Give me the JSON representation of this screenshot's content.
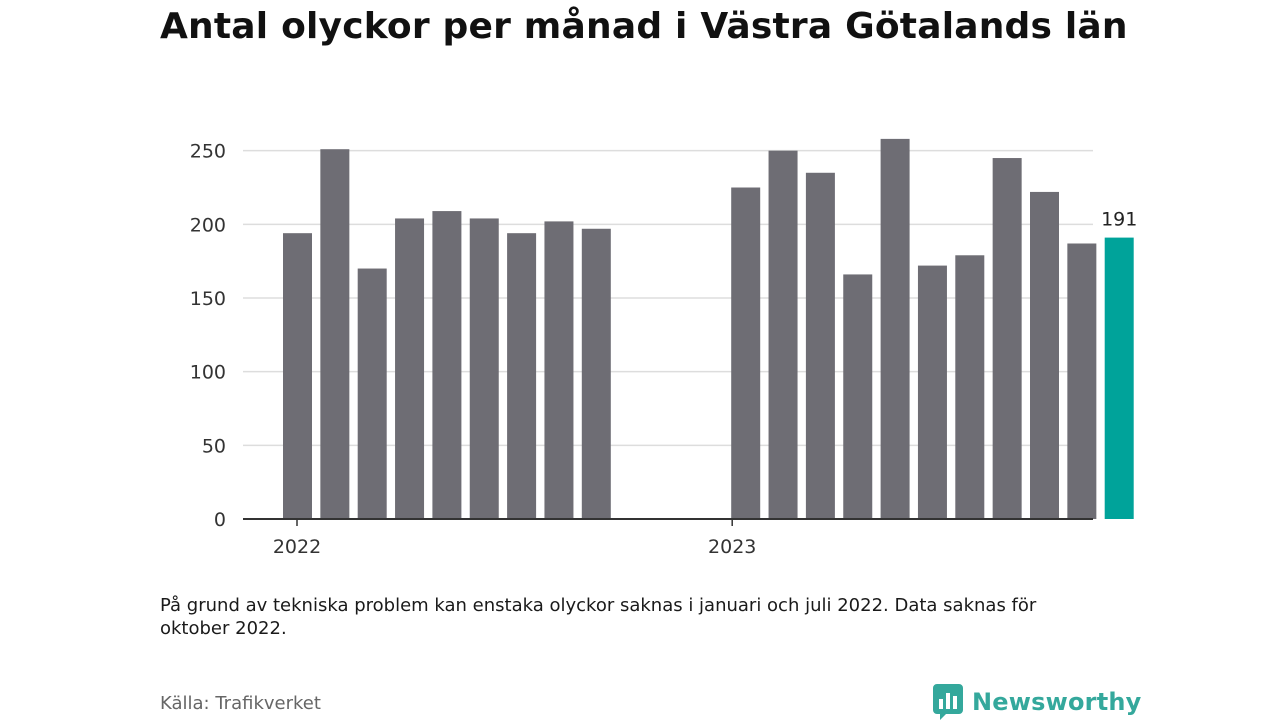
{
  "title": "Antal olyckor per månad i Västra Götalands län",
  "note": "På grund av tekniska problem kan enstaka olyckor saknas i januari och juli 2022. Data saknas för oktober 2022.",
  "source": "Källa: Trafikverket",
  "brand": {
    "name": "Newsworthy",
    "color": "#34a89c",
    "icon": "newsworthy-logo-icon"
  },
  "colors": {
    "bar": "#6e6d74",
    "highlight": "#00a39a",
    "grid": "#dddddd",
    "axis": "#333333"
  },
  "chart_data": {
    "type": "bar",
    "title": "Antal olyckor per månad i Västra Götalands län",
    "xlabel": "",
    "ylabel": "",
    "ylim": [
      0,
      270
    ],
    "yticks": [
      0,
      50,
      100,
      150,
      200,
      250
    ],
    "grid": true,
    "categories": [
      "2022-01",
      "2022-02",
      "2022-03",
      "2022-04",
      "2022-05",
      "2022-06",
      "2022-07",
      "2022-08",
      "2022-09",
      "2022-10",
      "2022-11",
      "2022-12",
      "2023-01",
      "2023-02",
      "2023-03",
      "2023-04",
      "2023-05",
      "2023-06",
      "2023-07",
      "2023-08",
      "2023-09",
      "2023-10",
      "2023-11",
      "2023-12"
    ],
    "values": [
      194,
      251,
      170,
      204,
      209,
      204,
      194,
      202,
      197,
      null,
      null,
      null,
      225,
      250,
      235,
      166,
      258,
      172,
      179,
      245,
      222,
      187,
      191,
      null
    ],
    "x_tick_labels": [
      {
        "label": "2022",
        "category": "2022-01"
      },
      {
        "label": "2023",
        "category": "2023-01"
      }
    ],
    "highlight": {
      "category": "2023-11",
      "label": "191"
    }
  }
}
